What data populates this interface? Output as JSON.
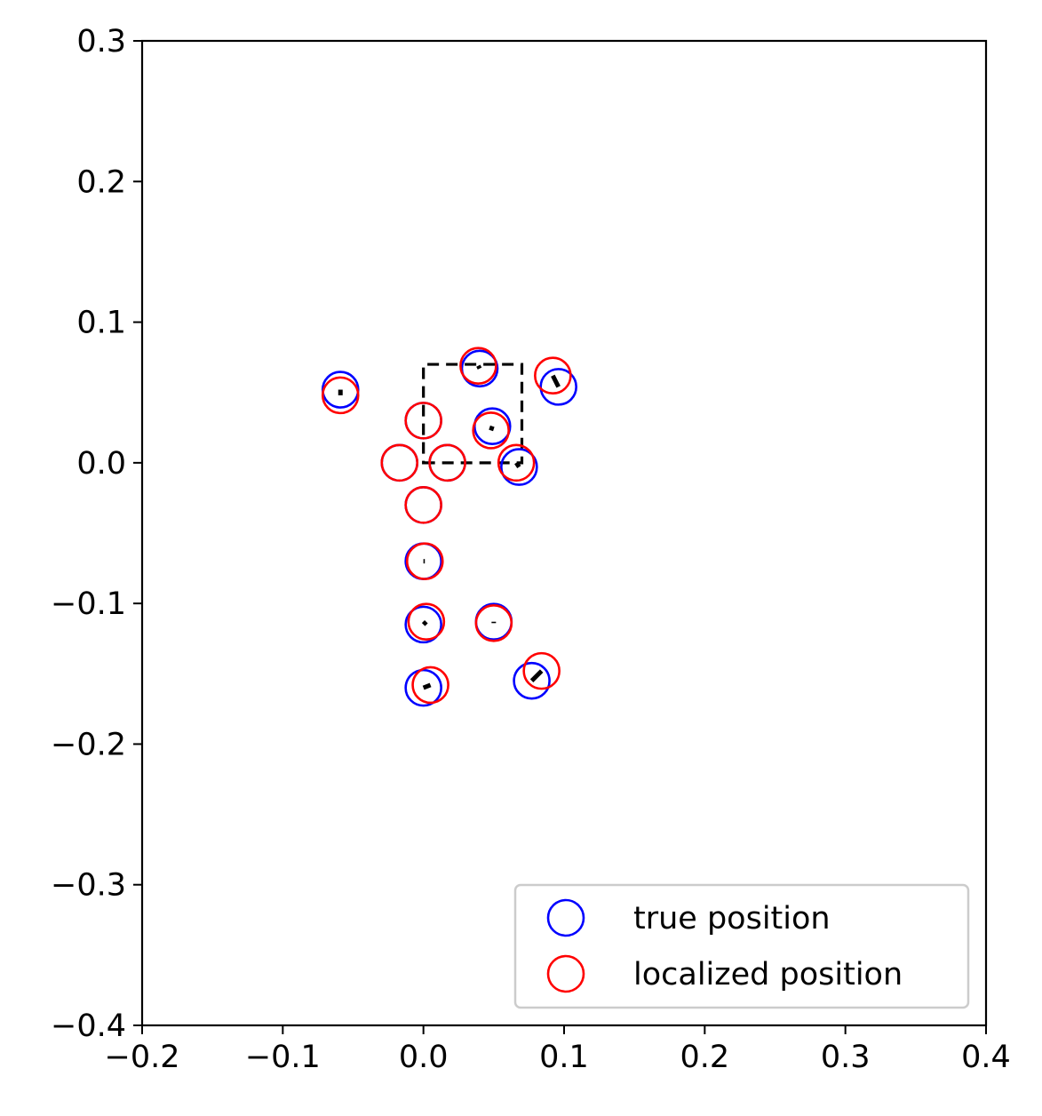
{
  "chart_data": {
    "type": "scatter",
    "title": "",
    "xlabel": "",
    "ylabel": "",
    "xlim": [
      -0.2,
      0.4
    ],
    "ylim": [
      -0.4,
      0.3
    ],
    "x_ticks": [
      -0.2,
      -0.1,
      0.0,
      0.1,
      0.2,
      0.3,
      0.4
    ],
    "x_tick_labels": [
      "−0.2",
      "−0.1",
      "0.0",
      "0.1",
      "0.2",
      "0.3",
      "0.4"
    ],
    "y_ticks": [
      0.3,
      0.2,
      0.1,
      0.0,
      -0.1,
      -0.2,
      -0.3,
      -0.4
    ],
    "y_tick_labels": [
      "0.3",
      "0.2",
      "0.1",
      "0.0",
      "−0.1",
      "−0.2",
      "−0.3",
      "−0.4"
    ],
    "grid": false,
    "legend_location": "lower-right",
    "series": [
      {
        "name": "true position",
        "color": "#0000ff",
        "marker": "open-circle",
        "points": [
          [
            -0.059,
            0.052
          ],
          [
            0.04,
            0.067
          ],
          [
            0.096,
            0.054
          ],
          [
            0.049,
            0.026
          ],
          [
            0.068,
            -0.003
          ],
          [
            0.0,
            0.03
          ],
          [
            -0.017,
            0.0
          ],
          [
            0.017,
            0.0
          ],
          [
            0.0,
            -0.03
          ],
          [
            0.0,
            -0.07
          ],
          [
            0.0,
            -0.115
          ],
          [
            0.05,
            -0.113
          ],
          [
            0.0,
            -0.16
          ],
          [
            0.077,
            -0.155
          ]
        ]
      },
      {
        "name": "localized position",
        "color": "#ff0000",
        "marker": "open-circle",
        "points": [
          [
            -0.059,
            0.048
          ],
          [
            0.039,
            0.069
          ],
          [
            0.092,
            0.062
          ],
          [
            0.048,
            0.023
          ],
          [
            0.066,
            0.0
          ],
          [
            0.0,
            0.03
          ],
          [
            -0.017,
            0.0
          ],
          [
            0.017,
            0.0
          ],
          [
            0.0,
            -0.03
          ],
          [
            0.001,
            -0.07
          ],
          [
            0.002,
            -0.113
          ],
          [
            0.05,
            -0.114
          ],
          [
            0.005,
            -0.158
          ],
          [
            0.084,
            -0.148
          ]
        ]
      }
    ],
    "error_segments": {
      "color": "#000000",
      "note": "short solid segments joining each true position to its localized position",
      "pairs": "derived from series order"
    },
    "reference_rectangle": {
      "color": "#000000",
      "style": "dashed",
      "corners": [
        [
          0.0,
          0.0
        ],
        [
          0.07,
          0.0
        ],
        [
          0.07,
          0.07
        ],
        [
          0.0,
          0.07
        ]
      ]
    }
  }
}
